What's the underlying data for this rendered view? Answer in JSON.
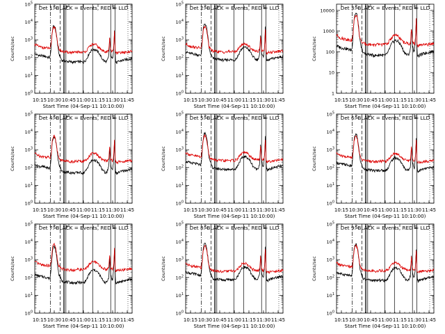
{
  "colors": {
    "events": "#000000",
    "lld": "#dd0000",
    "background": "#ffffff"
  },
  "chart_data": {
    "type": "line",
    "layout": "3x3 grid",
    "xlabel": "Start Time (04-Sep-11 10:10:00)",
    "ylabel": "Counts/sec",
    "x_ticks": [
      "10:15",
      "10:30",
      "10:45",
      "11:00",
      "11:15",
      "11:30",
      "11:45"
    ],
    "x_tick_minutes": [
      15,
      30,
      45,
      60,
      75,
      90,
      105
    ],
    "xlim_minutes": [
      10,
      110
    ],
    "y_scale": "log",
    "ylim": [
      1,
      100000
    ],
    "y_tick_values": [
      1,
      10,
      100,
      1000,
      10000,
      100000
    ],
    "y_tick_labels_exp": [
      "10^0",
      "10^1",
      "10^2",
      "10^3",
      "10^4",
      "10^5"
    ],
    "y_tick_labels_plain": [
      "1",
      "10",
      "100",
      "1000",
      "10000",
      "100000"
    ],
    "vertical_markers": {
      "dashdot": [
        26
      ],
      "dashed": [
        36
      ],
      "solid": [
        39.5,
        40.5,
        42,
        59.5,
        69.5,
        88,
        92.5
      ],
      "labels": [
        {
          "x": 30.5,
          "text": "S"
        },
        {
          "x": 43,
          "text": "F"
        },
        {
          "x": 91,
          "text": "E"
        }
      ]
    },
    "x_minutes": [
      10,
      15,
      20,
      25,
      26,
      27,
      28,
      29,
      30,
      31,
      32,
      33,
      34,
      35,
      36,
      37,
      38,
      40,
      45,
      50,
      55,
      60,
      63,
      66,
      68,
      70,
      73,
      76,
      79,
      82,
      84,
      86,
      87,
      88,
      89,
      90,
      91,
      92,
      92.5,
      93,
      94,
      96,
      100,
      105,
      110
    ],
    "profile_black": [
      160,
      130,
      120,
      100,
      120,
      600,
      3000,
      5500,
      6000,
      5000,
      2500,
      900,
      300,
      150,
      120,
      85,
      70,
      65,
      60,
      55,
      60,
      55,
      80,
      180,
      250,
      300,
      270,
      180,
      90,
      60,
      60,
      110,
      1500,
      170,
      100,
      80,
      300,
      4500,
      250,
      60,
      50,
      60,
      70,
      80,
      90
    ],
    "profile_red": [
      700,
      500,
      450,
      420,
      400,
      800,
      3500,
      6200,
      6500,
      5400,
      2800,
      1100,
      500,
      380,
      330,
      300,
      280,
      270,
      250,
      240,
      260,
      250,
      300,
      500,
      650,
      700,
      650,
      450,
      320,
      290,
      270,
      300,
      1800,
      320,
      280,
      270,
      400,
      5000,
      330,
      220,
      220,
      230,
      240,
      260,
      280
    ],
    "panels": [
      {
        "title": "Det 1: BLACK = Events, RED = LLD",
        "ylim": [
          1,
          100000
        ],
        "tick_style": "exp",
        "black_scale": 1.0,
        "red_scale": 0.8
      },
      {
        "title": "Det 2: BLACK = Events, RED = LLD",
        "ylim": [
          1,
          100000
        ],
        "tick_style": "exp",
        "black_scale": 1.3,
        "red_scale": 0.85
      },
      {
        "title": "Det 3: BLACK = Events, RED = LLD",
        "ylim": [
          1,
          20000
        ],
        "tick_style": "plain",
        "black_scale": 1.2,
        "red_scale": 0.9
      },
      {
        "title": "Det 4: BLACK = Events, RED = LLD",
        "ylim": [
          1,
          100000
        ],
        "tick_style": "exp",
        "black_scale": 0.9,
        "red_scale": 0.9
      },
      {
        "title": "Det 5: BLACK = Events, RED = LLD",
        "ylim": [
          1,
          100000
        ],
        "tick_style": "exp",
        "black_scale": 1.4,
        "red_scale": 1.0
      },
      {
        "title": "Det 6: BLACK = Events, RED = LLD",
        "ylim": [
          1,
          100000
        ],
        "tick_style": "exp",
        "black_scale": 1.2,
        "red_scale": 0.9
      },
      {
        "title": "Det 7: BLACK = Events, RED = LLD",
        "ylim": [
          1,
          100000
        ],
        "tick_style": "exp",
        "black_scale": 0.9,
        "red_scale": 1.1
      },
      {
        "title": "Det 8: BLACK = Events, RED = LLD",
        "ylim": [
          1,
          100000
        ],
        "tick_style": "exp",
        "black_scale": 1.3,
        "red_scale": 0.9
      },
      {
        "title": "Det 9: BLACK = Events, RED = LLD",
        "ylim": [
          1,
          100000
        ],
        "tick_style": "exp",
        "black_scale": 1.2,
        "red_scale": 0.95
      }
    ]
  }
}
